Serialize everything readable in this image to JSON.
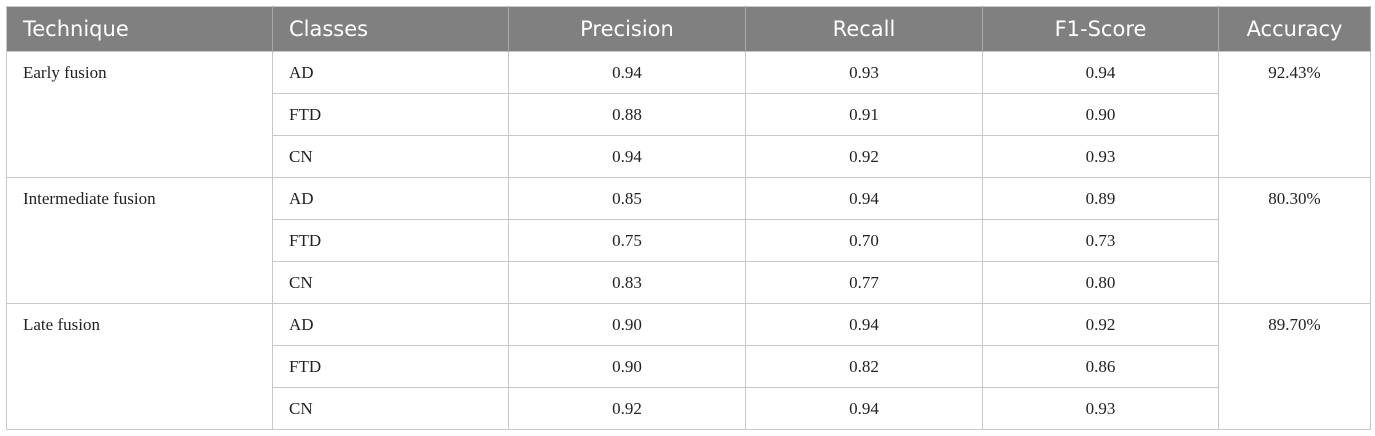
{
  "table": {
    "columns": [
      "Technique",
      "Classes",
      "Precision",
      "Recall",
      "F1-Score",
      "Accuracy"
    ],
    "groups": [
      {
        "technique": "Early fusion",
        "accuracy": "92.43%",
        "rows": [
          [
            "AD",
            "0.94",
            "0.93",
            "0.94"
          ],
          [
            "FTD",
            "0.88",
            "0.91",
            "0.90"
          ],
          [
            "CN",
            "0.94",
            "0.92",
            "0.93"
          ]
        ]
      },
      {
        "technique": "Intermediate fusion",
        "accuracy": "80.30%",
        "rows": [
          [
            "AD",
            "0.85",
            "0.94",
            "0.89"
          ],
          [
            "FTD",
            "0.75",
            "0.70",
            "0.73"
          ],
          [
            "CN",
            "0.83",
            "0.77",
            "0.80"
          ]
        ]
      },
      {
        "technique": "Late fusion",
        "accuracy": "89.70%",
        "rows": [
          [
            "AD",
            "0.90",
            "0.94",
            "0.92"
          ],
          [
            "FTD",
            "0.90",
            "0.82",
            "0.86"
          ],
          [
            "CN",
            "0.92",
            "0.94",
            "0.93"
          ]
        ]
      }
    ]
  }
}
